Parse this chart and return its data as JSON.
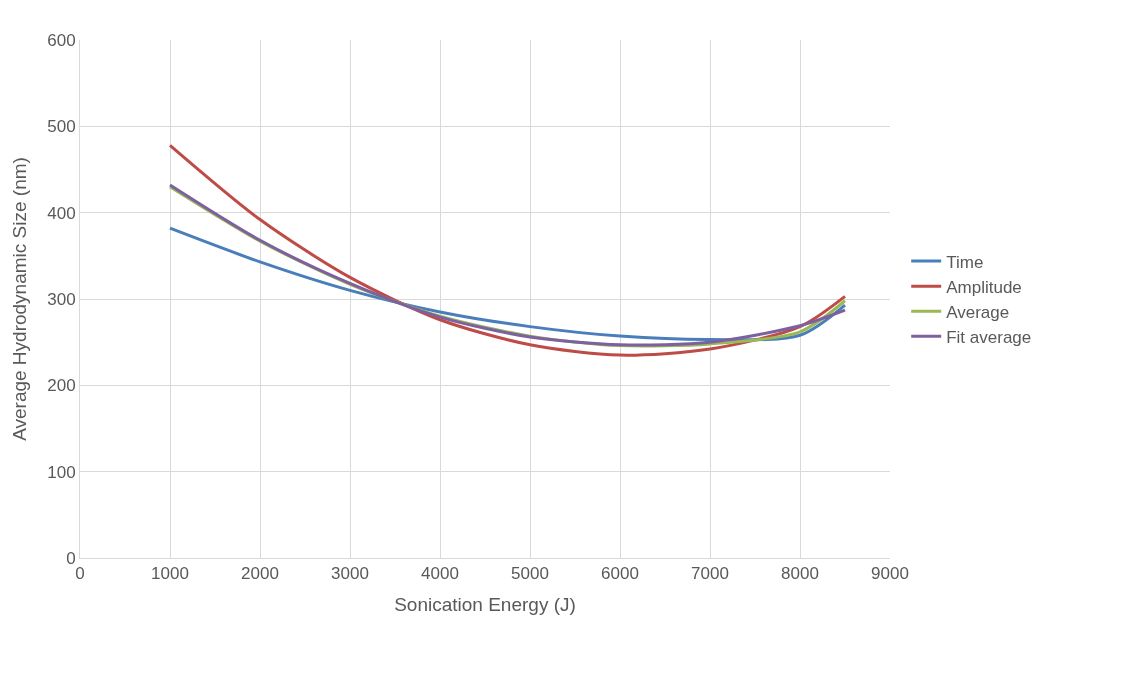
{
  "chart_data": {
    "type": "line",
    "xlabel": "Sonication Energy (J)",
    "ylabel": "Average Hydrodynamic Size (nm)",
    "x": [
      1000,
      2000,
      3000,
      4000,
      5000,
      6000,
      7000,
      8000,
      8500
    ],
    "series": [
      {
        "name": "Time",
        "color": "#4a7ebb",
        "values": [
          382,
          343,
          310,
          285,
          268,
          257,
          253,
          258,
          293
        ]
      },
      {
        "name": "Amplitude",
        "color": "#be4b48",
        "values": [
          478,
          392,
          325,
          276,
          247,
          235,
          242,
          268,
          303
        ]
      },
      {
        "name": "Average",
        "color": "#98b954",
        "values": [
          430,
          367,
          317,
          280,
          257,
          246,
          248,
          262,
          298
        ]
      },
      {
        "name": "Fit average",
        "color": "#7d60a0",
        "values": [
          432,
          368,
          318,
          279,
          256,
          247,
          250,
          269,
          287
        ]
      }
    ],
    "xlim": [
      0,
      9000
    ],
    "xticks": [
      0,
      1000,
      2000,
      3000,
      4000,
      5000,
      6000,
      7000,
      8000,
      9000
    ],
    "ylim": [
      0,
      600
    ],
    "yticks": [
      0,
      100,
      200,
      300,
      400,
      500,
      600
    ],
    "grid": true,
    "legend": "right",
    "marker": "none",
    "line_style": "solid"
  }
}
